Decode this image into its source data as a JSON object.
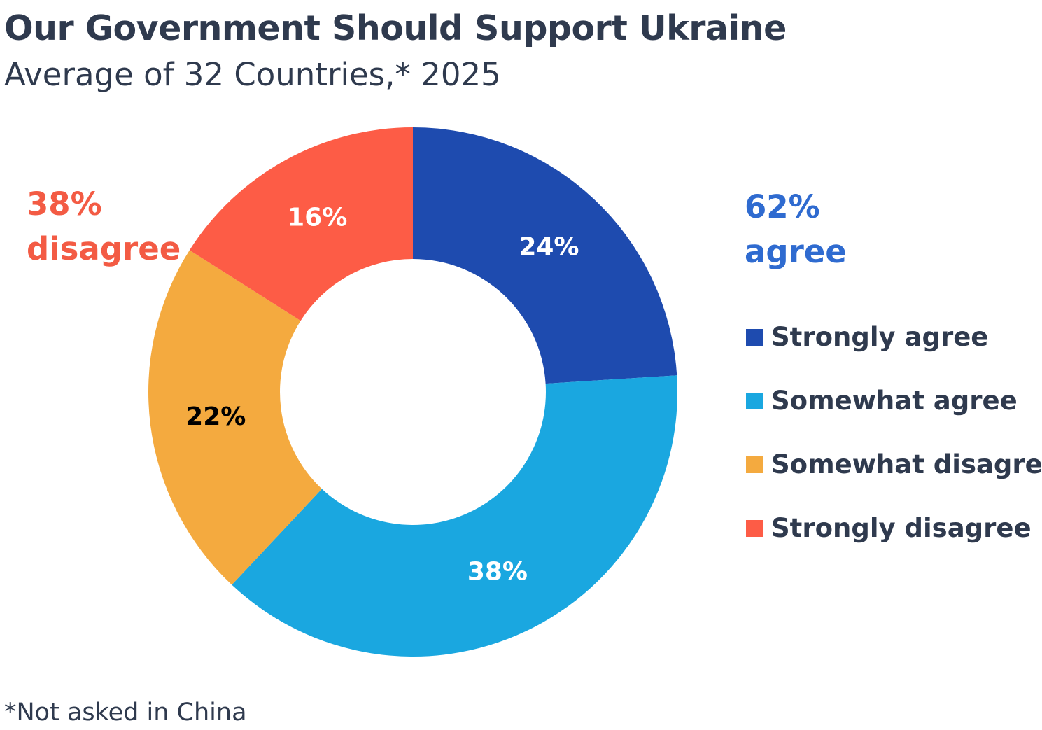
{
  "chart_data": {
    "type": "pie",
    "title": "Our Government Should Support Ukraine",
    "subtitle": "Average of 32 Countries,* 2025",
    "footnote": "*Not asked in China",
    "categories": [
      "Strongly agree",
      "Somewhat agree",
      "Somewhat disagree",
      "Strongly disagree"
    ],
    "values": [
      24,
      38,
      22,
      16
    ],
    "value_labels": [
      "24%",
      "38%",
      "22%",
      "16%"
    ],
    "colors": [
      "#1e4baf",
      "#1aa7e0",
      "#f4aa3f",
      "#fd5c46"
    ],
    "label_colors": [
      "#ffffff",
      "#ffffff",
      "#000000",
      "#ffffff"
    ],
    "donut": true,
    "legend_position": "right",
    "annotations": {
      "agree": {
        "pct": "62%",
        "word": "agree",
        "color": "#2f6bd0"
      },
      "disagree": {
        "pct": "38%",
        "word": "disagree",
        "color": "#f35b44"
      }
    }
  },
  "text_color": "#2f3a4e"
}
